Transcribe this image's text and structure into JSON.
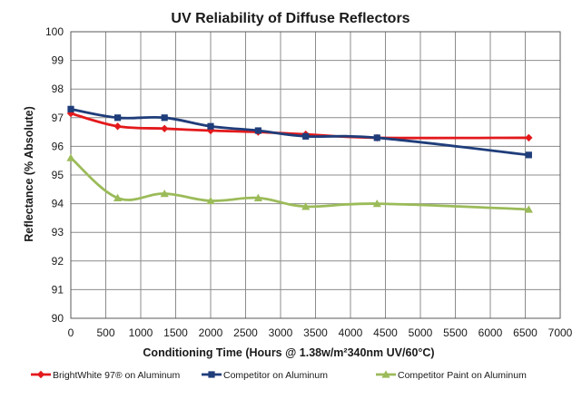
{
  "chart_data": {
    "type": "line",
    "title": "UV Reliability of Diffuse Reflectors",
    "xlabel": "Conditioning Time (Hours @ 1.38w/m²340nm UV/60°C)",
    "ylabel": "Reflectance (% Absolute)",
    "xlim": [
      0,
      7000
    ],
    "ylim": [
      90,
      100
    ],
    "xticks": [
      0,
      500,
      1000,
      1500,
      2000,
      2500,
      3000,
      3500,
      4000,
      4500,
      5000,
      5500,
      6000,
      6500,
      7000
    ],
    "yticks": [
      90,
      91,
      92,
      93,
      94,
      95,
      96,
      97,
      98,
      99,
      100
    ],
    "grid": true,
    "legend_position": "bottom",
    "series": [
      {
        "name": "BrightWhite 97® on Aluminum",
        "color": "#e3191c",
        "marker": "diamond",
        "x": [
          0,
          670,
          1340,
          2000,
          2680,
          3360,
          4380,
          6550
        ],
        "y": [
          97.15,
          96.7,
          96.62,
          96.55,
          96.5,
          96.42,
          96.3,
          96.3
        ]
      },
      {
        "name": "Competitor  on Aluminum",
        "color": "#1f3d7a",
        "marker": "square",
        "x": [
          0,
          670,
          1340,
          2000,
          2680,
          3360,
          4380,
          6550
        ],
        "y": [
          97.3,
          97.0,
          97.0,
          96.7,
          96.55,
          96.35,
          96.3,
          95.7
        ]
      },
      {
        "name": "Competitor Paint on Aluminum",
        "color": "#9bbb59",
        "marker": "triangle",
        "x": [
          0,
          670,
          1340,
          2000,
          2680,
          3360,
          4380,
          6550
        ],
        "y": [
          95.6,
          94.2,
          94.35,
          94.1,
          94.2,
          93.9,
          94.0,
          93.8
        ]
      }
    ]
  }
}
